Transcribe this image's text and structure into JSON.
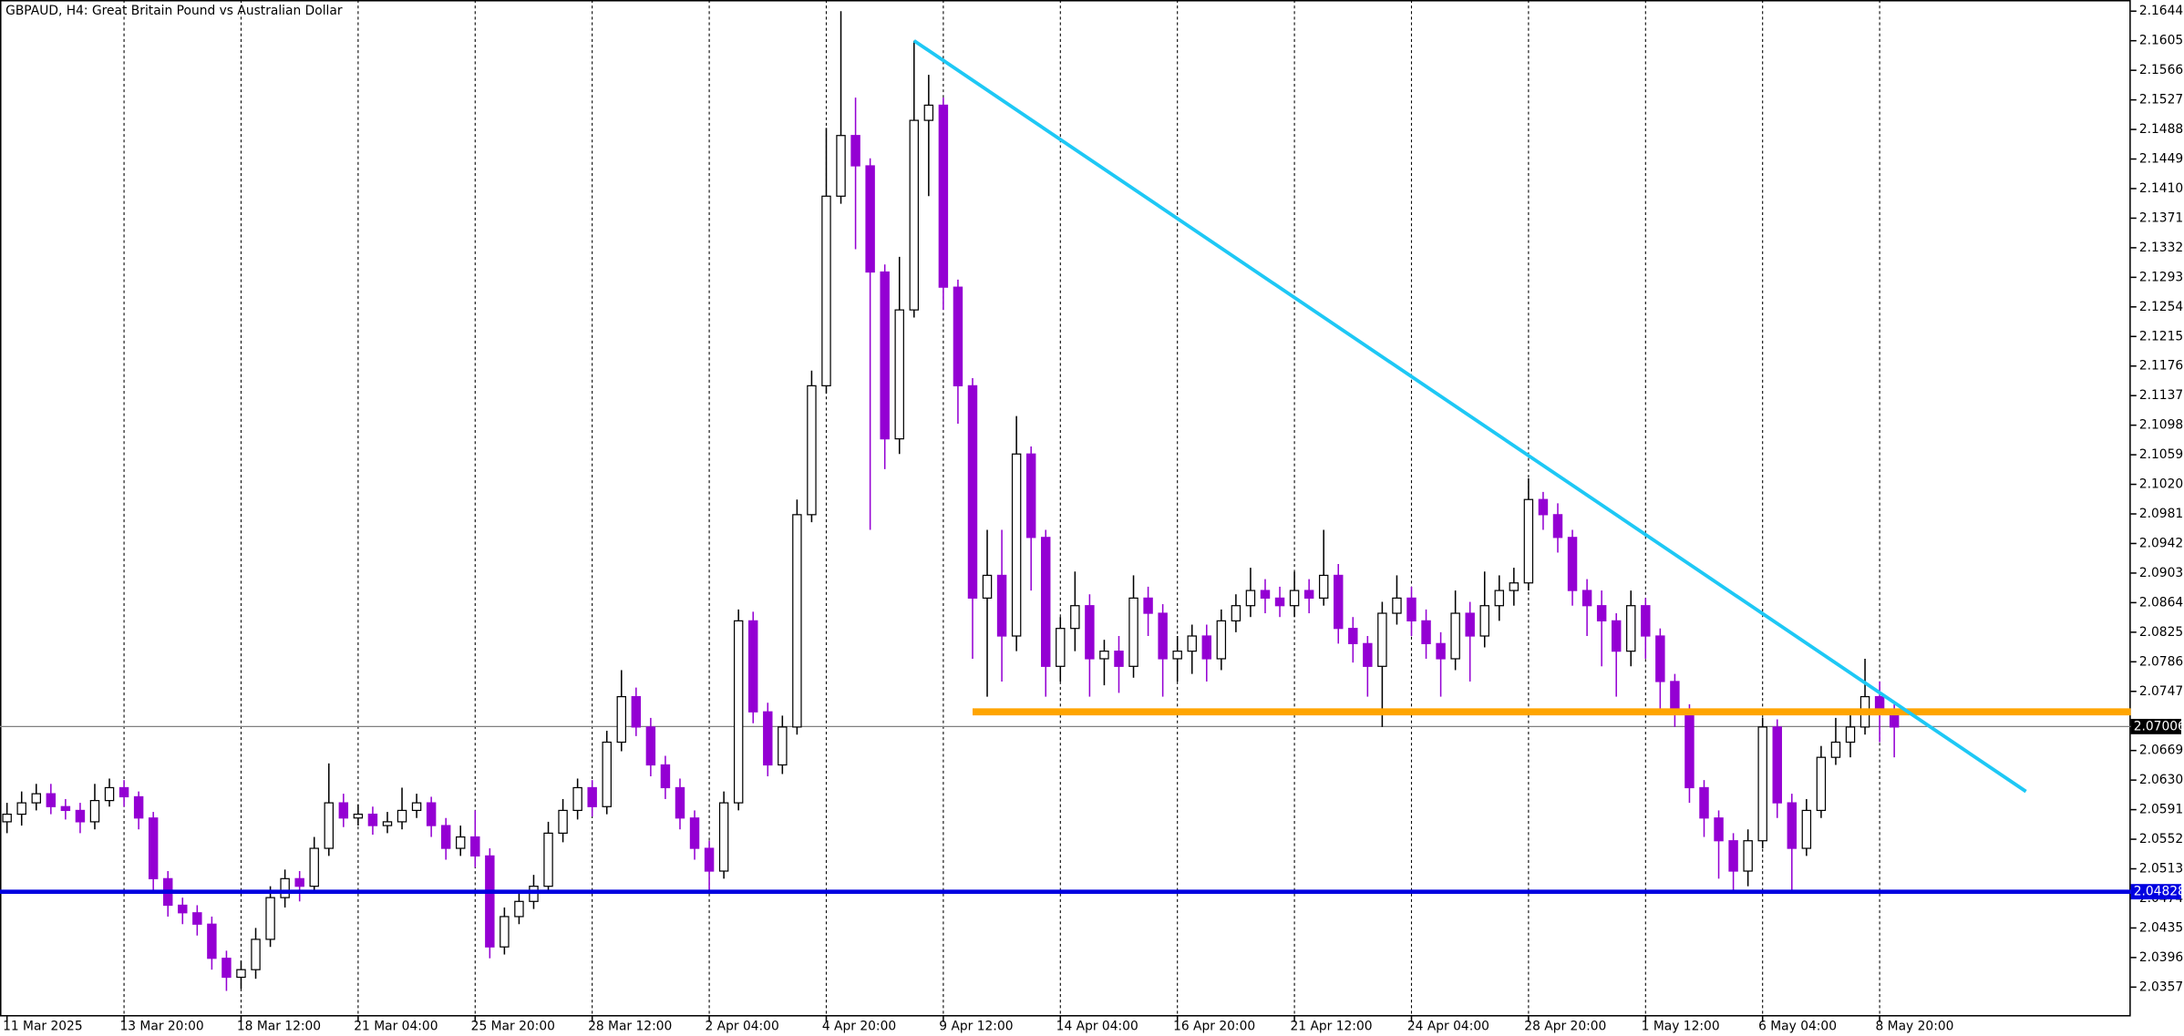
{
  "chart_data": {
    "type": "candlestick",
    "title": "GBPAUD, H4:  Great Britain Pound vs Australian Dollar",
    "categories": [
      "11 Mar 2025",
      null,
      null,
      null,
      null,
      null,
      null,
      null,
      "13 Mar 20:00",
      null,
      null,
      null,
      null,
      null,
      null,
      null,
      "18 Mar 12:00",
      null,
      null,
      null,
      null,
      null,
      null,
      null,
      "21 Mar 04:00",
      null,
      null,
      null,
      null,
      null,
      null,
      null,
      "25 Mar 20:00",
      null,
      null,
      null,
      null,
      null,
      null,
      null,
      "28 Mar 12:00",
      null,
      null,
      null,
      null,
      null,
      null,
      null,
      "2 Apr 04:00",
      null,
      null,
      null,
      null,
      null,
      null,
      null,
      "4 Apr 20:00",
      null,
      null,
      null,
      null,
      null,
      null,
      null,
      "9 Apr 12:00",
      null,
      null,
      null,
      null,
      null,
      null,
      null,
      "14 Apr 04:00",
      null,
      null,
      null,
      null,
      null,
      null,
      null,
      "16 Apr 20:00",
      null,
      null,
      null,
      null,
      null,
      null,
      null,
      "21 Apr 12:00",
      null,
      null,
      null,
      null,
      null,
      null,
      null,
      "24 Apr 04:00",
      null,
      null,
      null,
      null,
      null,
      null,
      null,
      "28 Apr 20:00",
      null,
      null,
      null,
      null,
      null,
      null,
      null,
      "1 May 12:00",
      null,
      null,
      null,
      null,
      null,
      null,
      null,
      "6 May 04:00",
      null,
      null,
      null,
      null,
      null,
      null,
      null,
      "8 May 20:00",
      null
    ],
    "open": [
      2.0575,
      2.0585,
      2.06,
      2.0612,
      2.0595,
      2.059,
      2.0575,
      2.0603,
      2.062,
      2.0608,
      2.058,
      2.05,
      2.0465,
      2.0455,
      2.044,
      2.0395,
      2.037,
      2.038,
      2.042,
      2.0475,
      2.05,
      2.049,
      2.054,
      2.06,
      2.058,
      2.0585,
      2.057,
      2.0575,
      2.059,
      2.06,
      2.057,
      2.054,
      2.0555,
      2.053,
      2.041,
      2.045,
      2.047,
      2.049,
      2.056,
      2.059,
      2.062,
      2.0595,
      2.068,
      2.074,
      2.07,
      2.065,
      2.062,
      2.058,
      2.054,
      2.051,
      2.06,
      2.084,
      2.072,
      2.065,
      2.07,
      2.098,
      2.115,
      2.14,
      2.148,
      2.144,
      2.13,
      2.108,
      2.125,
      2.15,
      2.152,
      2.128,
      2.115,
      2.087,
      2.09,
      2.082,
      2.106,
      2.095,
      2.078,
      2.083,
      2.086,
      2.079,
      2.08,
      2.078,
      2.087,
      2.085,
      2.079,
      2.08,
      2.082,
      2.079,
      2.084,
      2.086,
      2.088,
      2.087,
      2.086,
      2.088,
      2.087,
      2.09,
      2.083,
      2.081,
      2.078,
      2.085,
      2.087,
      2.084,
      2.081,
      2.079,
      2.085,
      2.082,
      2.086,
      2.088,
      2.089,
      2.1,
      2.098,
      2.095,
      2.088,
      2.086,
      2.084,
      2.08,
      2.086,
      2.082,
      2.076,
      2.072,
      2.062,
      2.058,
      2.055,
      2.051,
      2.055,
      2.07,
      2.06,
      2.054,
      2.059,
      2.066,
      2.068,
      2.07,
      2.074,
      2.072
    ],
    "high": [
      2.06,
      2.0615,
      2.0625,
      2.0625,
      2.0605,
      2.06,
      2.0625,
      2.0632,
      2.063,
      2.0615,
      2.0588,
      2.051,
      2.0475,
      2.0465,
      2.045,
      2.0405,
      2.0392,
      2.0435,
      2.049,
      2.0512,
      2.051,
      2.0555,
      2.0652,
      2.0612,
      2.0598,
      2.0595,
      2.0588,
      2.062,
      2.0612,
      2.0608,
      2.058,
      2.057,
      2.059,
      2.054,
      2.0462,
      2.0482,
      2.0505,
      2.0575,
      2.0605,
      2.0632,
      2.063,
      2.0695,
      2.0775,
      2.0752,
      2.0712,
      2.0662,
      2.0632,
      2.059,
      2.055,
      2.0615,
      2.0855,
      2.0852,
      2.0732,
      2.0715,
      2.1,
      2.117,
      2.149,
      2.1644,
      2.153,
      2.145,
      2.131,
      2.132,
      2.1605,
      2.156,
      2.153,
      2.129,
      2.116,
      2.096,
      2.096,
      2.111,
      2.107,
      2.096,
      2.0845,
      2.0905,
      2.0875,
      2.0815,
      2.082,
      2.09,
      2.0885,
      2.0862,
      2.082,
      2.0835,
      2.0835,
      2.0855,
      2.0875,
      2.091,
      2.0895,
      2.0885,
      2.0905,
      2.0895,
      2.096,
      2.0915,
      2.0845,
      2.082,
      2.0865,
      2.09,
      2.0885,
      2.0855,
      2.0825,
      2.088,
      2.0865,
      2.0905,
      2.09,
      2.091,
      2.1028,
      2.101,
      2.0995,
      2.096,
      2.0895,
      2.088,
      2.085,
      2.088,
      2.087,
      2.083,
      2.077,
      2.073,
      2.063,
      2.059,
      2.056,
      2.0565,
      2.0712,
      2.071,
      2.0612,
      2.0605,
      2.0675,
      2.0712,
      2.072,
      2.079,
      2.076,
      2.073
    ],
    "low": [
      2.056,
      2.057,
      2.059,
      2.0585,
      2.0578,
      2.056,
      2.0565,
      2.0595,
      2.0595,
      2.0565,
      2.0485,
      2.045,
      2.044,
      2.0425,
      2.038,
      2.0352,
      2.0355,
      2.0368,
      2.041,
      2.0462,
      2.047,
      2.048,
      2.053,
      2.0568,
      2.057,
      2.0558,
      2.056,
      2.0565,
      2.058,
      2.0555,
      2.0525,
      2.053,
      2.0515,
      2.0395,
      2.04,
      2.044,
      2.046,
      2.048,
      2.0548,
      2.0578,
      2.0582,
      2.0585,
      2.0668,
      2.0688,
      2.0635,
      2.0605,
      2.0565,
      2.0525,
      2.0482,
      2.05,
      2.059,
      2.0705,
      2.0635,
      2.0638,
      2.069,
      2.097,
      2.114,
      2.139,
      2.133,
      2.096,
      2.104,
      2.106,
      2.124,
      2.14,
      2.125,
      2.11,
      2.079,
      2.074,
      2.076,
      2.08,
      2.088,
      2.074,
      2.076,
      2.08,
      2.074,
      2.0755,
      2.0745,
      2.0765,
      2.082,
      2.074,
      2.076,
      2.077,
      2.076,
      2.0775,
      2.0825,
      2.0845,
      2.085,
      2.0845,
      2.0845,
      2.085,
      2.086,
      2.081,
      2.0785,
      2.074,
      2.07,
      2.0835,
      2.082,
      2.079,
      2.074,
      2.0775,
      2.076,
      2.0805,
      2.084,
      2.086,
      2.088,
      2.096,
      2.093,
      2.086,
      2.082,
      2.078,
      2.074,
      2.078,
      2.079,
      2.072,
      2.07,
      2.06,
      2.0555,
      2.05,
      2.048,
      2.049,
      2.054,
      2.058,
      2.0485,
      2.053,
      2.058,
      2.065,
      2.066,
      2.069,
      2.068,
      2.066
    ],
    "close": [
      2.0585,
      2.06,
      2.0612,
      2.0595,
      2.059,
      2.0575,
      2.0603,
      2.062,
      2.0608,
      2.058,
      2.05,
      2.0465,
      2.0455,
      2.044,
      2.0395,
      2.037,
      2.038,
      2.042,
      2.0475,
      2.05,
      2.049,
      2.054,
      2.06,
      2.058,
      2.0585,
      2.057,
      2.0575,
      2.059,
      2.06,
      2.057,
      2.054,
      2.0555,
      2.053,
      2.041,
      2.045,
      2.047,
      2.049,
      2.056,
      2.059,
      2.062,
      2.0595,
      2.068,
      2.074,
      2.07,
      2.065,
      2.062,
      2.058,
      2.054,
      2.051,
      2.06,
      2.084,
      2.072,
      2.065,
      2.07,
      2.098,
      2.115,
      2.14,
      2.148,
      2.144,
      2.13,
      2.108,
      2.125,
      2.15,
      2.152,
      2.128,
      2.115,
      2.087,
      2.09,
      2.082,
      2.106,
      2.095,
      2.078,
      2.083,
      2.086,
      2.079,
      2.08,
      2.078,
      2.087,
      2.085,
      2.079,
      2.08,
      2.082,
      2.079,
      2.084,
      2.086,
      2.088,
      2.087,
      2.086,
      2.088,
      2.087,
      2.09,
      2.083,
      2.081,
      2.078,
      2.085,
      2.087,
      2.084,
      2.081,
      2.079,
      2.085,
      2.082,
      2.086,
      2.088,
      2.089,
      2.1,
      2.098,
      2.095,
      2.088,
      2.086,
      2.084,
      2.08,
      2.086,
      2.082,
      2.076,
      2.072,
      2.062,
      2.058,
      2.055,
      2.051,
      2.055,
      2.07,
      2.06,
      2.054,
      2.059,
      2.066,
      2.068,
      2.07,
      2.074,
      2.072,
      2.07
    ],
    "bull_color": "#ffffff",
    "bear_color": "#9400d3",
    "outline_color": "#000000",
    "ylim": [
      2.03183,
      2.16587
    ],
    "yticks": [
      {
        "value": 2.1644,
        "label": "2.16440"
      },
      {
        "value": 2.1605,
        "label": "2.16050"
      },
      {
        "value": 2.1566,
        "label": "2.15660"
      },
      {
        "value": 2.1527,
        "label": "2.15270"
      },
      {
        "value": 2.1488,
        "label": "2.14880"
      },
      {
        "value": 2.1449,
        "label": "2.14490"
      },
      {
        "value": 2.141,
        "label": "2.14100"
      },
      {
        "value": 2.1371,
        "label": "2.13710"
      },
      {
        "value": 2.1332,
        "label": "2.13320"
      },
      {
        "value": 2.1293,
        "label": "2.12930"
      },
      {
        "value": 2.1254,
        "label": "2.12540"
      },
      {
        "value": 2.1215,
        "label": "2.12150"
      },
      {
        "value": 2.1176,
        "label": "2.11760"
      },
      {
        "value": 2.1137,
        "label": "2.11370"
      },
      {
        "value": 2.1098,
        "label": "2.10980"
      },
      {
        "value": 2.1059,
        "label": "2.10590"
      },
      {
        "value": 2.102,
        "label": "2.10200"
      },
      {
        "value": 2.0981,
        "label": "2.09810"
      },
      {
        "value": 2.0942,
        "label": "2.09420"
      },
      {
        "value": 2.0903,
        "label": "2.09030"
      },
      {
        "value": 2.0864,
        "label": "2.08640"
      },
      {
        "value": 2.0825,
        "label": "2.08250"
      },
      {
        "value": 2.0786,
        "label": "2.07860"
      },
      {
        "value": 2.0747,
        "label": "2.07470"
      },
      {
        "value": 2.0669,
        "label": "2.06690"
      },
      {
        "value": 2.063,
        "label": "2.06300"
      },
      {
        "value": 2.0591,
        "label": "2.05910"
      },
      {
        "value": 2.0552,
        "label": "2.05520"
      },
      {
        "value": 2.0513,
        "label": "2.05130"
      },
      {
        "value": 2.0474,
        "label": "2.04740"
      },
      {
        "value": 2.0435,
        "label": "2.04350"
      },
      {
        "value": 2.0396,
        "label": "2.03960"
      },
      {
        "value": 2.0357,
        "label": "2.03570"
      }
    ],
    "grid": true,
    "trendline": {
      "color": "#1ec8f5",
      "x": [
        62,
        138
      ],
      "y": [
        2.1605,
        2.0615
      ]
    },
    "support": {
      "color": "#ffa500",
      "from": 66,
      "value": 2.072
    },
    "level": {
      "color": "#0000e0",
      "value": 2.04828,
      "label": "2.04828"
    },
    "bid": {
      "color": "#808080",
      "value": 2.07006,
      "label": "2.07006"
    }
  }
}
